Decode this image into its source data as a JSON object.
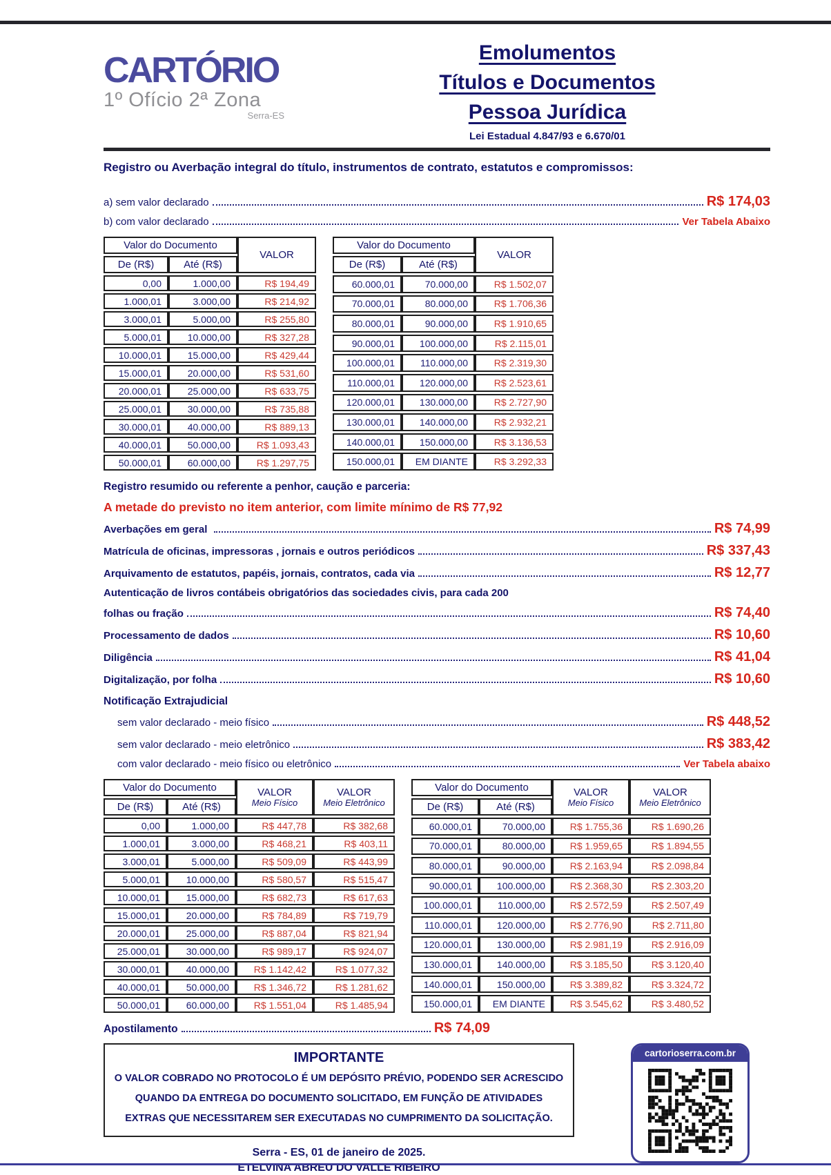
{
  "header": {
    "logo_brand": "CARTÓRIO",
    "logo_subtitle": "1º Ofício 2ª Zona",
    "logo_location": "Serra-ES",
    "title_line1": "Emolumentos",
    "title_line2": "Títulos e Documentos",
    "title_line3": "Pessoa Jurídica",
    "law": "Lei Estadual 4.847/93 e 6.670/01"
  },
  "intro": {
    "heading": "Registro ou Averbação integral do título, instrumentos de contrato, estatutos e compromissos:",
    "items": [
      {
        "label": "a) sem valor declarado",
        "value": "R$ 174,03"
      },
      {
        "label": "b) com valor declarado",
        "value": "Ver Tabela Abaixo",
        "small": true
      }
    ]
  },
  "table_headers": {
    "group": "Valor do Documento",
    "de": "De (R$)",
    "ate": "Até (R$)",
    "valor": "VALOR",
    "meio_fisico": "Meio Físico",
    "meio_eletronico": "Meio Eletrônico"
  },
  "table1": {
    "left_rows": [
      [
        "0,00",
        "1.000,00",
        "R$ 194,49"
      ],
      [
        "1.000,01",
        "3.000,00",
        "R$ 214,92"
      ],
      [
        "3.000,01",
        "5.000,00",
        "R$ 255,80"
      ],
      [
        "5.000,01",
        "10.000,00",
        "R$ 327,28"
      ],
      [
        "10.000,01",
        "15.000,00",
        "R$ 429,44"
      ],
      [
        "15.000,01",
        "20.000,00",
        "R$ 531,60"
      ],
      [
        "20.000,01",
        "25.000,00",
        "R$ 633,75"
      ],
      [
        "25.000,01",
        "30.000,00",
        "R$ 735,88"
      ],
      [
        "30.000,01",
        "40.000,00",
        "R$ 889,13"
      ],
      [
        "40.000,01",
        "50.000,00",
        "R$ 1.093,43"
      ],
      [
        "50.000,01",
        "60.000,00",
        "R$ 1.297,75"
      ]
    ],
    "right_rows": [
      [
        "60.000,01",
        "70.000,00",
        "R$ 1.502,07"
      ],
      [
        "70.000,01",
        "80.000,00",
        "R$ 1.706,36"
      ],
      [
        "80.000,01",
        "90.000,00",
        "R$ 1.910,65"
      ],
      [
        "90.000,01",
        "100.000,00",
        "R$ 2.115,01"
      ],
      [
        "100.000,01",
        "110.000,00",
        "R$ 2.319,30"
      ],
      [
        "110.000,01",
        "120.000,00",
        "R$ 2.523,61"
      ],
      [
        "120.000,01",
        "130.000,00",
        "R$ 2.727,90"
      ],
      [
        "130.000,01",
        "140.000,00",
        "R$ 2.932,21"
      ],
      [
        "140.000,01",
        "150.000,00",
        "R$ 3.136,53"
      ],
      [
        "150.000,01",
        "EM DIANTE",
        "R$ 3.292,33"
      ]
    ]
  },
  "middle": {
    "subheading": "Registro resumido ou referente a penhor, caução e parceria:",
    "note": "A metade do previsto no item anterior, com limite mínimo de R$ 77,92",
    "fees": [
      {
        "label": "Averbações em geral ",
        "value": "R$ 74,99"
      },
      {
        "label": "Matrícula de oficinas, impressoras , jornais e outros periódicos",
        "value": "R$ 337,43"
      },
      {
        "label": "Arquivamento de estatutos, papéis, jornais, contratos, cada via",
        "value": "R$ 12,77"
      },
      {
        "label": "Autenticação de livros contábeis obrigatórios das sociedades civis, para cada 200",
        "value": ""
      },
      {
        "label": "folhas ou fração",
        "value": "R$ 74,40"
      },
      {
        "label": "Processamento de dados",
        "value": "R$ 10,60"
      },
      {
        "label": "Diligência",
        "value": "R$ 41,04"
      },
      {
        "label": "Digitalização, por folha",
        "value": "R$ 10,60"
      }
    ],
    "notification_heading": "Notificação Extrajudicial",
    "notification_items": [
      {
        "label": "sem valor declarado - meio físico",
        "value": "R$ 448,52"
      },
      {
        "label": "sem valor declarado - meio eletrônico",
        "value": "R$ 383,42"
      },
      {
        "label": "com valor declarado - meio físico ou eletrônico",
        "value": "Ver Tabela abaixo",
        "small": true
      }
    ]
  },
  "table2": {
    "left_rows": [
      [
        "0,00",
        "1.000,00",
        "R$ 447,78",
        "R$ 382,68"
      ],
      [
        "1.000,01",
        "3.000,00",
        "R$ 468,21",
        "R$ 403,11"
      ],
      [
        "3.000,01",
        "5.000,00",
        "R$ 509,09",
        "R$ 443,99"
      ],
      [
        "5.000,01",
        "10.000,00",
        "R$ 580,57",
        "R$ 515,47"
      ],
      [
        "10.000,01",
        "15.000,00",
        "R$ 682,73",
        "R$ 617,63"
      ],
      [
        "15.000,01",
        "20.000,00",
        "R$ 784,89",
        "R$ 719,79"
      ],
      [
        "20.000,01",
        "25.000,00",
        "R$ 887,04",
        "R$ 821,94"
      ],
      [
        "25.000,01",
        "30.000,00",
        "R$ 989,17",
        "R$ 924,07"
      ],
      [
        "30.000,01",
        "40.000,00",
        "R$ 1.142,42",
        "R$ 1.077,32"
      ],
      [
        "40.000,01",
        "50.000,00",
        "R$ 1.346,72",
        "R$ 1.281,62"
      ],
      [
        "50.000,01",
        "60.000,00",
        "R$ 1.551,04",
        "R$ 1.485,94"
      ]
    ],
    "right_rows": [
      [
        "60.000,01",
        "70.000,00",
        "R$ 1.755,36",
        "R$ 1.690,26"
      ],
      [
        "70.000,01",
        "80.000,00",
        "R$ 1.959,65",
        "R$ 1.894,55"
      ],
      [
        "80.000,01",
        "90.000,00",
        "R$ 2.163,94",
        "R$ 2.098,84"
      ],
      [
        "90.000,01",
        "100.000,00",
        "R$ 2.368,30",
        "R$ 2.303,20"
      ],
      [
        "100.000,01",
        "110.000,00",
        "R$ 2.572,59",
        "R$ 2.507,49"
      ],
      [
        "110.000,01",
        "120.000,00",
        "R$ 2.776,90",
        "R$ 2.711,80"
      ],
      [
        "120.000,01",
        "130.000,00",
        "R$ 2.981,19",
        "R$ 2.916,09"
      ],
      [
        "130.000,01",
        "140.000,00",
        "R$ 3.185,50",
        "R$ 3.120,40"
      ],
      [
        "140.000,01",
        "150.000,00",
        "R$ 3.389,82",
        "R$ 3.324,72"
      ],
      [
        "150.000,01",
        "EM DIANTE",
        "R$ 3.545,62",
        "R$ 3.480,52"
      ]
    ]
  },
  "apostilamento": {
    "label": "Apostilamento",
    "value": "R$ 74,09"
  },
  "important": {
    "title": "IMPORTANTE",
    "lines": [
      "O VALOR COBRADO NO PROTOCOLO É UM DEPÓSITO PRÉVIO, PODENDO SER ACRESCIDO",
      "QUANDO DA ENTREGA DO DOCUMENTO SOLICITADO, EM FUNÇÃO DE ATIVIDADES",
      "EXTRAS QUE NECESSITAREM SER EXECUTADAS NO CUMPRIMENTO DA SOLICITAÇÃO."
    ]
  },
  "qr": {
    "label": "cartorioserra.com.br"
  },
  "footer": {
    "place_date": "Serra - ES, 01 de janeiro de 2025.",
    "name": "ETELVINA ABREU DO VALLE RIBEIRO"
  },
  "colors": {
    "navy": "#14146a",
    "logo_blue": "#4b4b9e",
    "red": "#d6251c",
    "table_red": "#c93b31",
    "qr_frame_blue": "#3e3e96"
  }
}
